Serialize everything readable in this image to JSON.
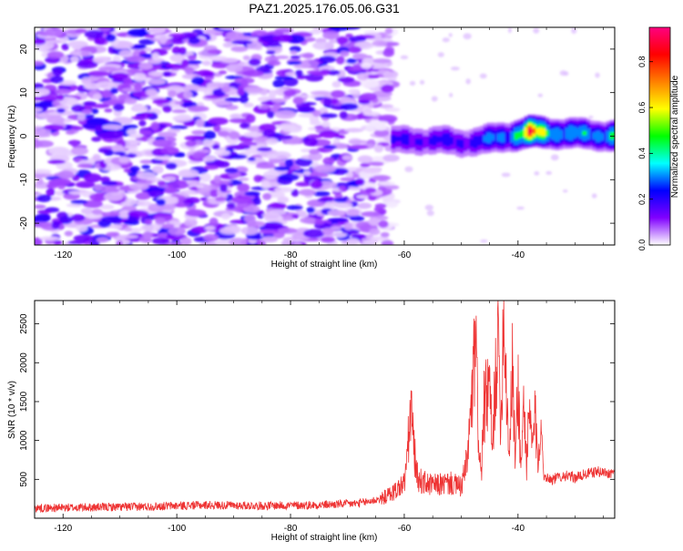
{
  "title": "PAZ1.2025.176.05.06.G31",
  "chart_data": [
    {
      "type": "heatmap",
      "title": "PAZ1.2025.176.05.06.G31",
      "xlabel": "Height of straight line (km)",
      "ylabel": "Frequency (Hz)",
      "xlim": [
        -125,
        -23
      ],
      "ylim": [
        -25,
        25
      ],
      "xticks": [
        -120,
        -100,
        -80,
        -60,
        -40
      ],
      "yticks": [
        -20,
        -10,
        0,
        10,
        20
      ],
      "grid": false,
      "noise_region_x": [
        -125,
        -64
      ],
      "signal_band": [
        {
          "x": -62,
          "frequency": -1.0,
          "amplitude": 0.25
        },
        {
          "x": -58,
          "frequency": -1.0,
          "amplitude": 0.3
        },
        {
          "x": -54,
          "frequency": -1.0,
          "amplitude": 0.28
        },
        {
          "x": -50,
          "frequency": -1.5,
          "amplitude": 0.3
        },
        {
          "x": -46,
          "frequency": -1.0,
          "amplitude": 0.35
        },
        {
          "x": -42,
          "frequency": 0.0,
          "amplitude": 0.45
        },
        {
          "x": -38,
          "frequency": 0.8,
          "amplitude": 0.95
        },
        {
          "x": -34,
          "frequency": 0.8,
          "amplitude": 0.6
        },
        {
          "x": -30,
          "frequency": 0.5,
          "amplitude": 0.45
        },
        {
          "x": -26,
          "frequency": 0.3,
          "amplitude": 0.5
        },
        {
          "x": -23,
          "frequency": 0.0,
          "amplitude": 0.6
        }
      ],
      "colorbar": {
        "label": "Normalized spectral amplitude",
        "range": [
          0,
          0.95
        ],
        "ticks": [
          "0.0",
          "0.2",
          "0.4",
          "0.6",
          "0.8"
        ],
        "colormap": [
          "#ffffff",
          "#8000ff",
          "#0000ff",
          "#00ffff",
          "#00ff00",
          "#ffff00",
          "#ff8000",
          "#ff0000",
          "#ff0080"
        ]
      }
    },
    {
      "type": "line",
      "xlabel": "Height of straight line (km)",
      "ylabel": "SNR (10 * v/v)",
      "xlim": [
        -125,
        -23
      ],
      "ylim": [
        0,
        2800
      ],
      "xticks": [
        -120,
        -100,
        -80,
        -60,
        -40
      ],
      "yticks": [
        500,
        1000,
        1500,
        2000,
        2500
      ],
      "grid": false,
      "line_color": "#ee3333",
      "series": [
        {
          "x": [
            -125,
            -115,
            -105,
            -95,
            -85,
            -75,
            -68,
            -64,
            -62,
            -60,
            -59.5,
            -58.8,
            -58.3,
            -57.8,
            -57,
            -55,
            -52,
            -50,
            -49,
            -48,
            -47.5,
            -47,
            -46.5,
            -46,
            -45,
            -44.5,
            -44,
            -43.5,
            -43,
            -42.5,
            -42,
            -41.5,
            -41,
            -40.5,
            -40,
            -39.5,
            -39,
            -38.5,
            -38,
            -37.5,
            -37,
            -36.5,
            -36,
            -35.5,
            -34,
            -32,
            -30,
            -28,
            -26,
            -24,
            -23
          ],
          "y": [
            130,
            140,
            150,
            170,
            160,
            170,
            190,
            250,
            330,
            450,
            800,
            1420,
            900,
            550,
            470,
            420,
            450,
            400,
            700,
            1600,
            2280,
            1200,
            500,
            1400,
            1700,
            800,
            1800,
            2400,
            1200,
            2800,
            1600,
            800,
            2000,
            700,
            1800,
            600,
            1500,
            700,
            1300,
            900,
            1300,
            700,
            1350,
            550,
            500,
            550,
            520,
            570,
            600,
            580,
            600
          ]
        }
      ]
    }
  ]
}
